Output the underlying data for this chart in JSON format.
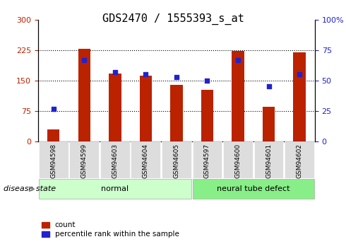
{
  "title": "GDS2470 / 1555393_s_at",
  "categories": [
    "GSM94598",
    "GSM94599",
    "GSM94603",
    "GSM94604",
    "GSM94605",
    "GSM94597",
    "GSM94600",
    "GSM94601",
    "GSM94602"
  ],
  "counts": [
    30,
    228,
    168,
    162,
    140,
    127,
    222,
    85,
    220
  ],
  "percentiles": [
    27,
    67,
    57,
    55,
    53,
    50,
    67,
    45,
    55
  ],
  "bar_color": "#bb2200",
  "dot_color": "#2222cc",
  "left_ylim": [
    0,
    300
  ],
  "right_ylim": [
    0,
    100
  ],
  "left_yticks": [
    0,
    75,
    150,
    225,
    300
  ],
  "right_yticks": [
    0,
    25,
    50,
    75,
    100
  ],
  "right_yticklabels": [
    "0",
    "25",
    "50",
    "75",
    "100%"
  ],
  "group_label_normal": "normal",
  "group_label_defect": "neural tube defect",
  "disease_state_label": "disease state",
  "legend_count": "count",
  "legend_percentile": "percentile rank within the sample",
  "normal_bg": "#ccffcc",
  "defect_bg": "#88ee88",
  "tick_label_bg": "#dddddd",
  "title_fontsize": 11,
  "axis_fontsize": 8
}
